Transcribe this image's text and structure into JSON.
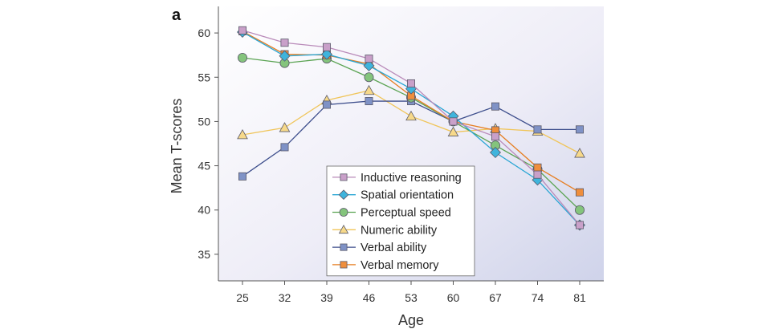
{
  "panel_label": "a",
  "chart_data": {
    "type": "line",
    "xlabel": "Age",
    "ylabel": "Mean T-scores",
    "x": [
      25,
      32,
      39,
      46,
      53,
      60,
      67,
      74,
      81
    ],
    "xlim": [
      21,
      85
    ],
    "ylim": [
      32,
      63
    ],
    "yticks": [
      35,
      40,
      45,
      50,
      55,
      60
    ],
    "legend_position": "bottom-center",
    "background": "gradient lavender",
    "series": [
      {
        "name": "Inductive reasoning",
        "marker": "square",
        "fill": "#c9a0c9",
        "line": "#b98ab9",
        "values": [
          60.3,
          58.9,
          58.4,
          57.1,
          54.3,
          50.0,
          48.3,
          44.0,
          38.3
        ]
      },
      {
        "name": "Spatial orientation",
        "marker": "diamond",
        "fill": "#3fb4dc",
        "line": "#2aa6d4",
        "values": [
          60.1,
          57.4,
          57.6,
          56.3,
          53.7,
          50.6,
          46.5,
          43.4,
          38.3
        ]
      },
      {
        "name": "Perceptual speed",
        "marker": "circle",
        "fill": "#84c47c",
        "line": "#5aa352",
        "values": [
          57.2,
          56.6,
          57.1,
          55.0,
          52.7,
          50.0,
          47.3,
          44.6,
          40.0
        ]
      },
      {
        "name": "Numeric ability",
        "marker": "triangle",
        "fill": "#f7d98a",
        "line": "#f0c55a",
        "values": [
          48.5,
          49.3,
          52.4,
          53.5,
          50.6,
          48.8,
          49.2,
          48.9,
          46.4
        ]
      },
      {
        "name": "Verbal ability",
        "marker": "square",
        "fill": "#7f92c6",
        "line": "#3d4e8c",
        "values": [
          43.8,
          47.1,
          51.9,
          52.3,
          52.3,
          50.0,
          51.7,
          49.1,
          49.1
        ]
      },
      {
        "name": "Verbal memory",
        "marker": "square",
        "fill": "#ef8e3c",
        "line": "#e67e22",
        "values": [
          60.2,
          57.6,
          57.5,
          56.5,
          52.9,
          50.0,
          49.0,
          44.8,
          42.0
        ]
      }
    ]
  }
}
